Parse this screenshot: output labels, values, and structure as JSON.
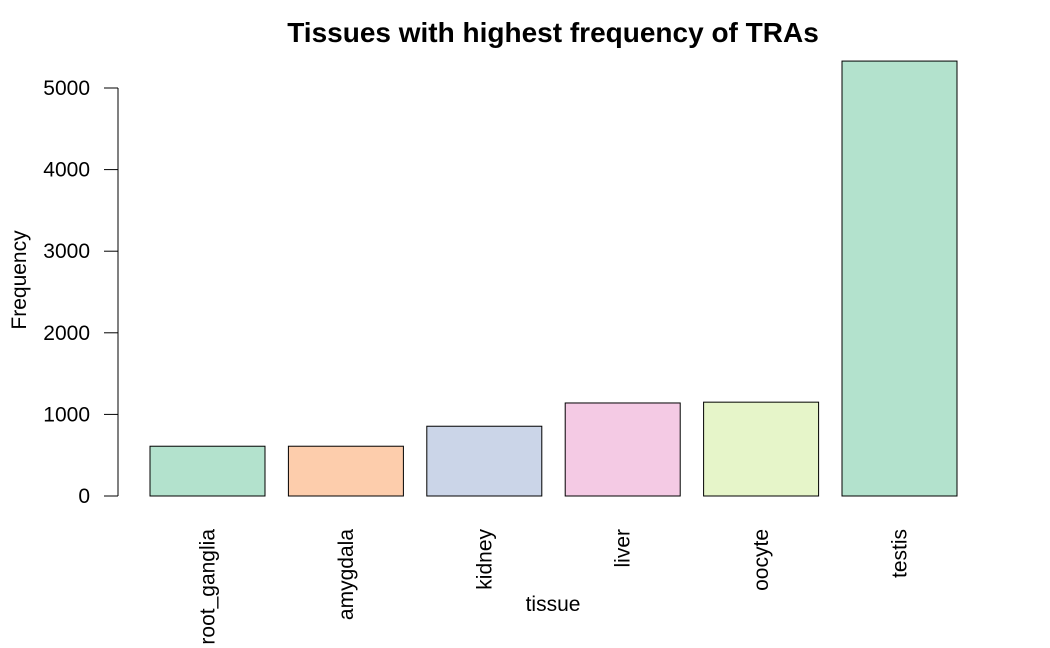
{
  "chart_data": {
    "type": "bar",
    "title": "Tissues with highest frequency of TRAs",
    "xlabel": "tissue",
    "ylabel": "Frequency",
    "categories": [
      "root_ganglia",
      "amygdala",
      "kidney",
      "liver",
      "oocyte",
      "testis"
    ],
    "values": [
      610,
      610,
      855,
      1140,
      1150,
      5330
    ],
    "colors": [
      "#B3E2CD",
      "#FDCDAC",
      "#CBD5E8",
      "#F4CAE4",
      "#E6F5C9",
      "#B3E2CD"
    ],
    "ylim": [
      0,
      5000
    ],
    "yticks": [
      0,
      1000,
      2000,
      3000,
      4000,
      5000
    ],
    "grid": false,
    "legend": "none"
  }
}
